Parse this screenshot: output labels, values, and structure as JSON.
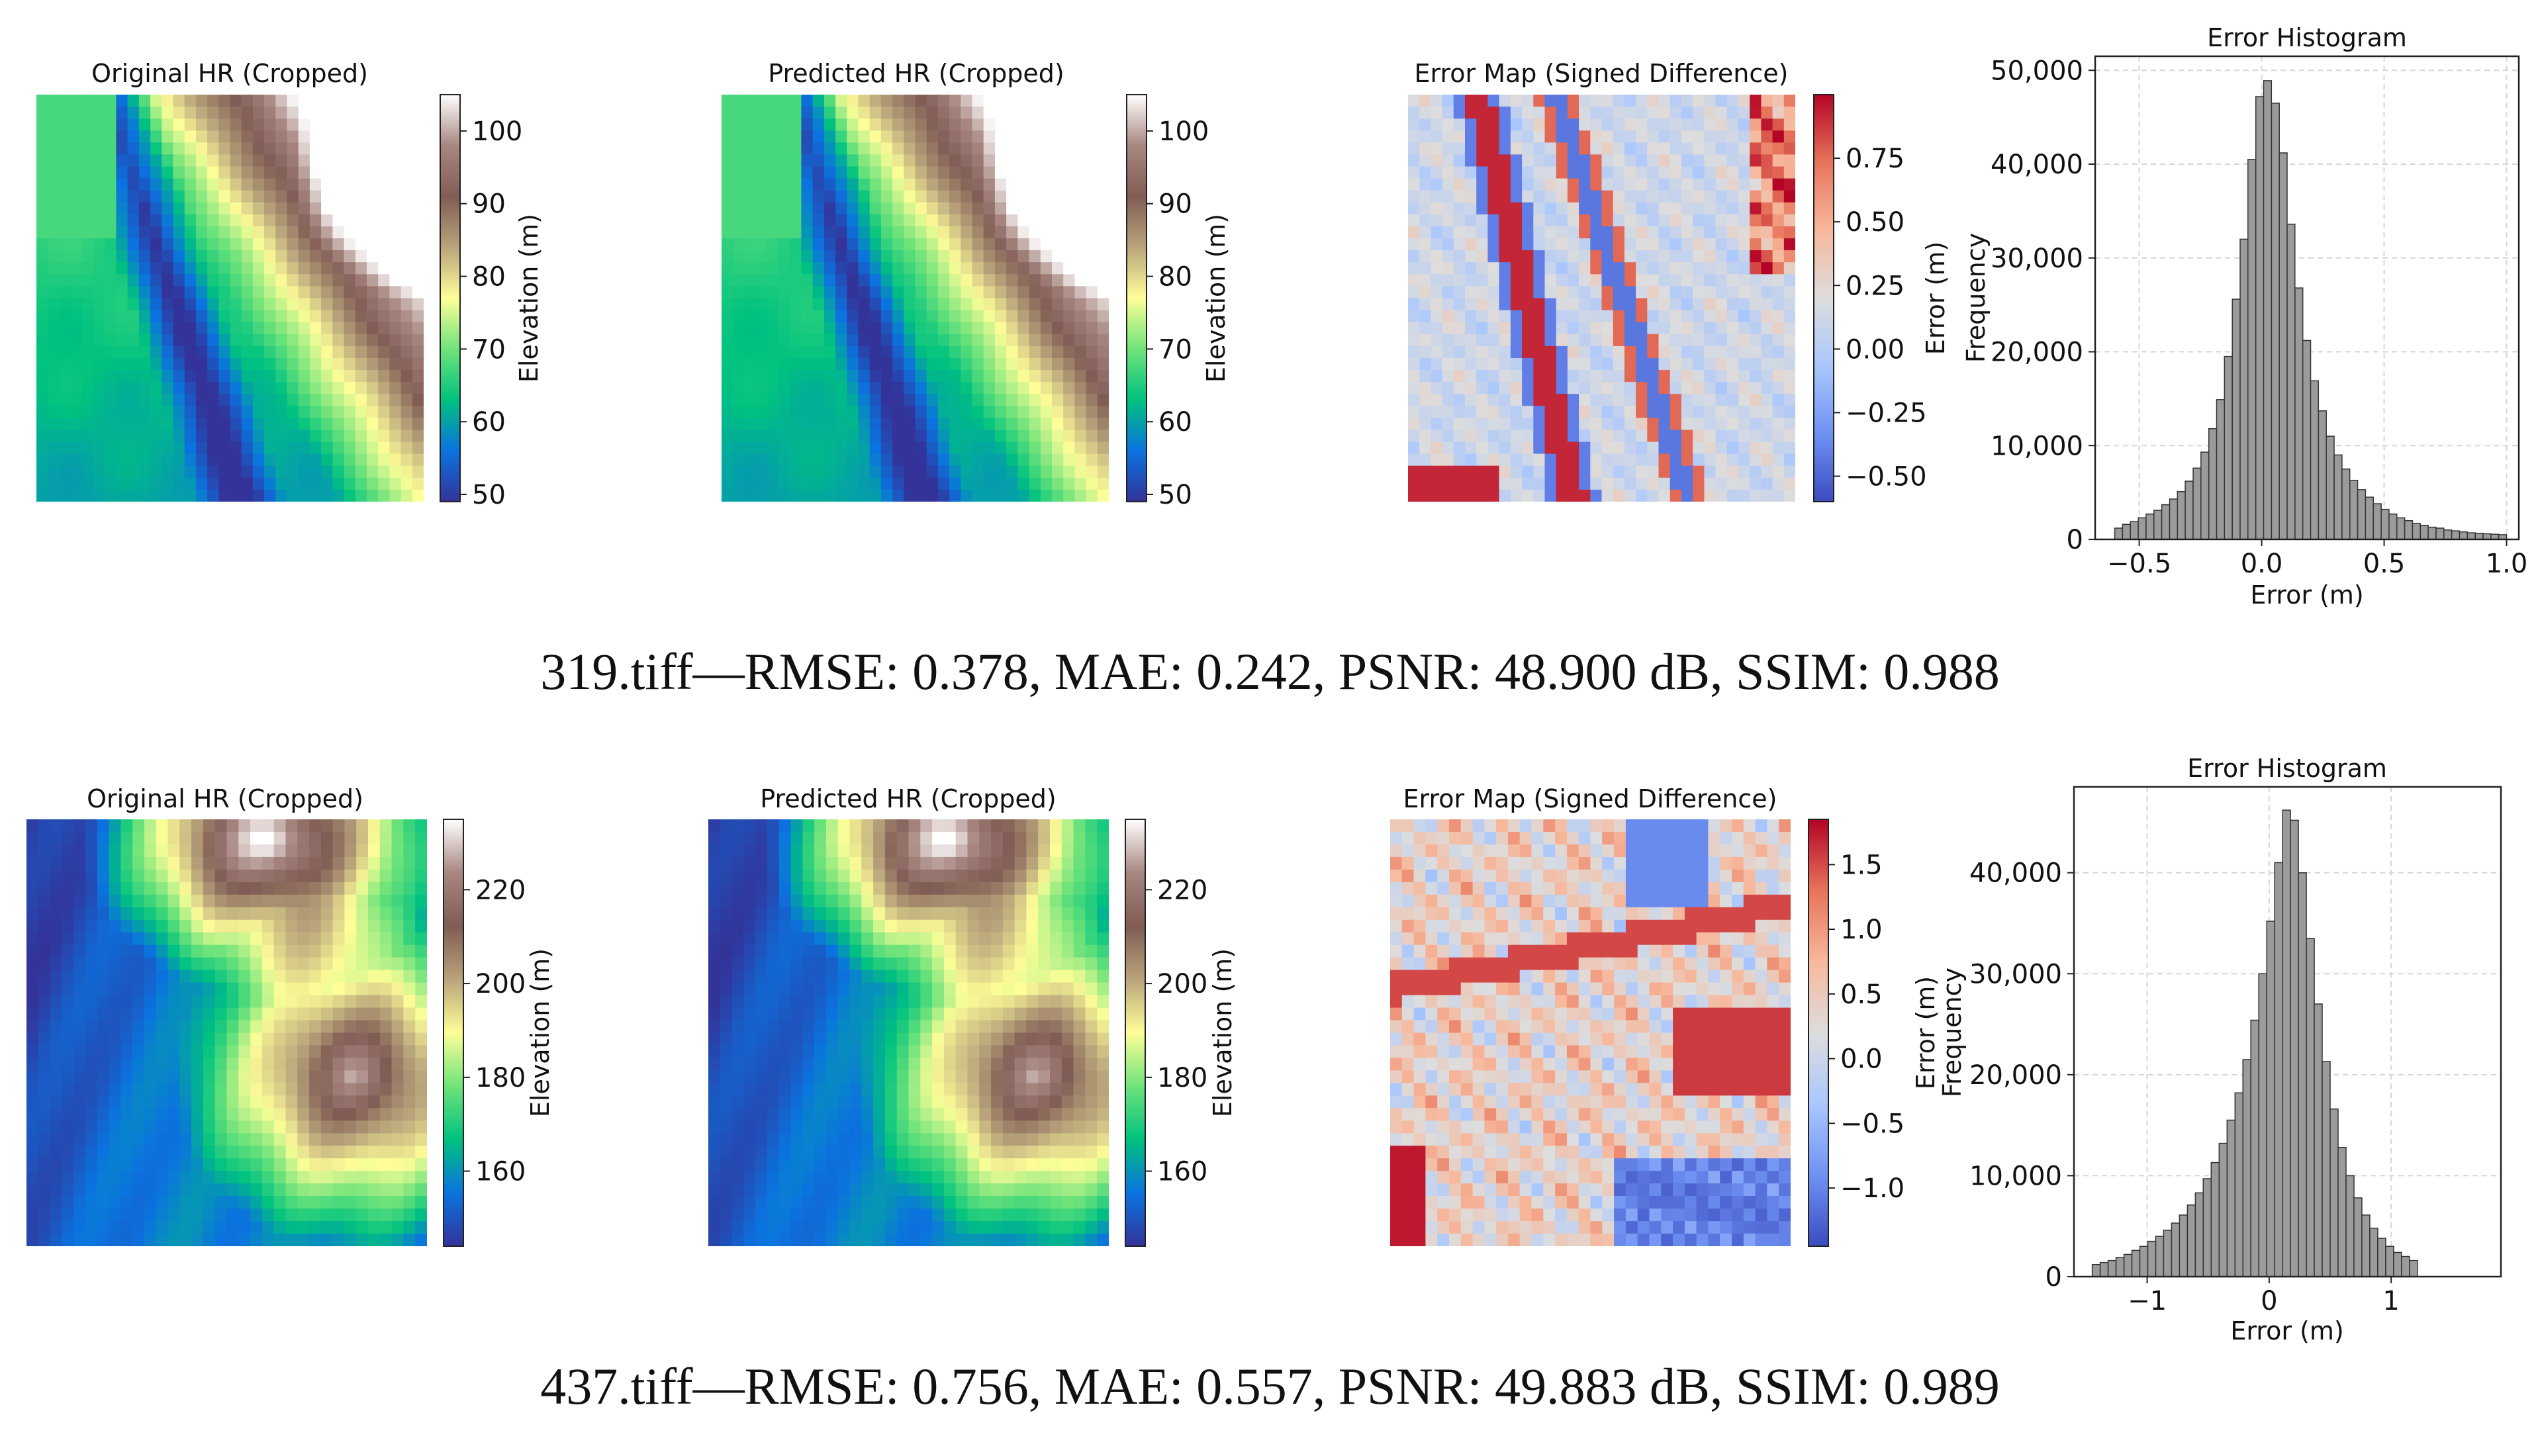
{
  "colors": {
    "terrain": [
      "#333399",
      "#0b73df",
      "#00c27f",
      "#6fe37a",
      "#fefe98",
      "#b9a47b",
      "#805c54",
      "#a88781",
      "#ffffff"
    ],
    "coolwarm": [
      "#3b4cc0",
      "#6f92f3",
      "#aac7fd",
      "#dddddd",
      "#f7b89c",
      "#e7745b",
      "#b40426"
    ],
    "hist_bar": "#9b9b9b",
    "hist_edge": "#333333",
    "grid": "#d6d6d6"
  },
  "rows": [
    {
      "caption": "319.tiff—RMSE: 0.378, MAE: 0.242, PSNR: 48.900 dB, SSIM: 0.988",
      "panels": [
        {
          "title": "Original HR (Cropped)",
          "map_kind": "elevation",
          "colorbar_label": "Elevation (m)",
          "colorbar_range": [
            49,
            105
          ],
          "colorbar_ticks": [
            "100",
            "90",
            "80",
            "70",
            "60",
            "50"
          ],
          "colorbar_tick_values": [
            100,
            90,
            80,
            70,
            60,
            50
          ]
        },
        {
          "title": "Predicted HR (Cropped)",
          "map_kind": "elevation",
          "colorbar_label": "Elevation (m)",
          "colorbar_range": [
            49,
            105
          ],
          "colorbar_ticks": [
            "100",
            "90",
            "80",
            "70",
            "60",
            "50"
          ],
          "colorbar_tick_values": [
            100,
            90,
            80,
            70,
            60,
            50
          ]
        },
        {
          "title": "Error Map (Signed Difference)",
          "map_kind": "error",
          "colorbar_label": "Error (m)",
          "colorbar_range": [
            -0.6,
            1.0
          ],
          "colorbar_ticks": [
            "0.75",
            "0.50",
            "0.25",
            "0.00",
            "−0.25",
            "−0.50"
          ],
          "colorbar_tick_values": [
            0.75,
            0.5,
            0.25,
            0.0,
            -0.25,
            -0.5
          ]
        }
      ],
      "histogram": {
        "title": "Error Histogram",
        "xlabel": "Error (m)",
        "ylabel": "Frequency",
        "xlim": [
          -0.68,
          1.05
        ],
        "ylim": [
          0,
          51500
        ],
        "xticks": [
          "−0.5",
          "0.0",
          "0.5",
          "1.0"
        ],
        "xtick_values": [
          -0.5,
          0.0,
          0.5,
          1.0
        ],
        "yticks": [
          "0",
          "10,000",
          "20,000",
          "30,000",
          "40,000",
          "50,000"
        ],
        "ytick_values": [
          0,
          10000,
          20000,
          30000,
          40000,
          50000
        ],
        "bin_start": -0.6,
        "bin_width": 0.032,
        "counts": [
          1200,
          1600,
          1900,
          2300,
          2700,
          3100,
          3700,
          4300,
          5100,
          6200,
          7600,
          9300,
          11800,
          14900,
          19500,
          25600,
          32000,
          40500,
          47200,
          48900,
          46500,
          41200,
          33600,
          26800,
          21200,
          16900,
          13700,
          11000,
          9000,
          7500,
          6300,
          5300,
          4500,
          3800,
          3200,
          2700,
          2300,
          2000,
          1700,
          1500,
          1300,
          1200,
          1000,
          900,
          800,
          700,
          650,
          600,
          550,
          500
        ]
      }
    },
    {
      "caption": "437.tiff—RMSE: 0.756, MAE: 0.557, PSNR: 49.883 dB, SSIM: 0.989",
      "panels": [
        {
          "title": "Original HR (Cropped)",
          "map_kind": "elevation",
          "colorbar_label": "Elevation (m)",
          "colorbar_range": [
            144,
            235
          ],
          "colorbar_ticks": [
            "220",
            "200",
            "180",
            "160"
          ],
          "colorbar_tick_values": [
            220,
            200,
            180,
            160
          ]
        },
        {
          "title": "Predicted HR (Cropped)",
          "map_kind": "elevation",
          "colorbar_label": "Elevation (m)",
          "colorbar_range": [
            144,
            235
          ],
          "colorbar_ticks": [
            "220",
            "200",
            "180",
            "160"
          ],
          "colorbar_tick_values": [
            220,
            200,
            180,
            160
          ]
        },
        {
          "title": "Error Map (Signed Difference)",
          "map_kind": "error",
          "colorbar_label": "Error (m)",
          "colorbar_range": [
            -1.45,
            1.85
          ],
          "colorbar_ticks": [
            "1.5",
            "1.0",
            "0.5",
            "0.0",
            "−0.5",
            "−1.0"
          ],
          "colorbar_tick_values": [
            1.5,
            1.0,
            0.5,
            0.0,
            -0.5,
            -1.0
          ]
        }
      ],
      "histogram": {
        "title": "Error Histogram",
        "xlabel": "Error (m)",
        "ylabel": "Frequency",
        "xlim": [
          -1.6,
          1.9
        ],
        "ylim": [
          0,
          48500
        ],
        "xticks": [
          "−1",
          "0",
          "1"
        ],
        "xtick_values": [
          -1,
          0,
          1
        ],
        "yticks": [
          "0",
          "10,000",
          "20,000",
          "30,000",
          "40,000"
        ],
        "ytick_values": [
          0,
          10000,
          20000,
          30000,
          40000
        ],
        "bin_start": -1.45,
        "bin_width": 0.065,
        "counts": [
          1200,
          1400,
          1600,
          1900,
          2200,
          2600,
          3000,
          3500,
          4000,
          4600,
          5300,
          6100,
          7100,
          8300,
          9700,
          11300,
          13200,
          15500,
          18200,
          21500,
          25400,
          30000,
          35200,
          41000,
          46200,
          45200,
          40000,
          33500,
          27000,
          21300,
          16600,
          12800,
          10000,
          7800,
          6100,
          4800,
          3800,
          3000,
          2400,
          2000,
          1600
        ]
      }
    }
  ],
  "chart_data": [
    {
      "type": "bar",
      "title": "Error Histogram",
      "xlabel": "Error (m)",
      "ylabel": "Frequency",
      "xlim": [
        -0.68,
        1.05
      ],
      "ylim": [
        0,
        51500
      ],
      "bin_start": -0.6,
      "bin_width": 0.032,
      "grid": true
    },
    {
      "type": "bar",
      "title": "Error Histogram",
      "xlabel": "Error (m)",
      "ylabel": "Frequency",
      "xlim": [
        -1.6,
        1.9
      ],
      "ylim": [
        0,
        48500
      ],
      "bin_start": -1.45,
      "bin_width": 0.065,
      "grid": true
    }
  ]
}
